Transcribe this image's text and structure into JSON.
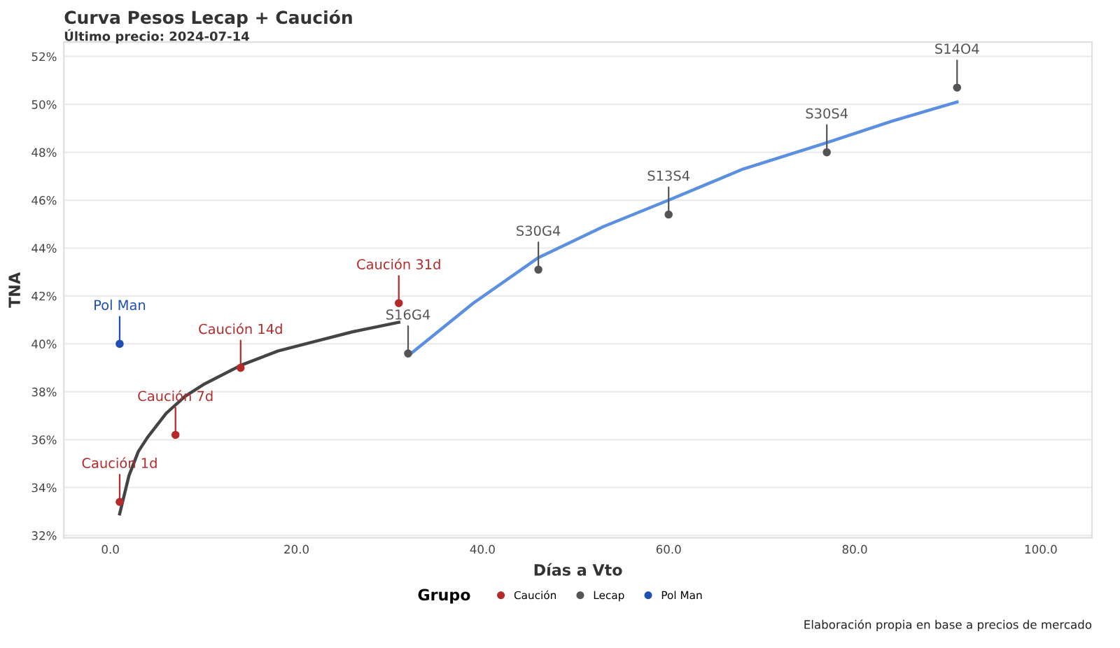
{
  "chart_data": {
    "type": "scatter",
    "title": "Curva Pesos Lecap + Caución",
    "subtitle": "Último precio: 2024-07-14",
    "xlabel": "Días a Vto",
    "ylabel": "TNA",
    "legend_title": "Grupo",
    "series": [
      {
        "name": "Caución",
        "color": "#b52a2a",
        "x": [
          1,
          7,
          14,
          31
        ],
        "values": [
          33.4,
          36.2,
          39.0,
          41.7
        ]
      },
      {
        "name": "Lecap",
        "color": "#555555",
        "x": [
          32,
          46,
          60,
          77,
          91
        ],
        "values": [
          39.6,
          43.1,
          45.4,
          48.0,
          50.7
        ]
      },
      {
        "name": "Pol Man",
        "color": "#1f4fb4",
        "x": [
          1
        ],
        "values": [
          40.0
        ]
      },
      {
        "type": "line",
        "marker": "none",
        "color": "#444444",
        "x": [
          1,
          2,
          3,
          4,
          6,
          8,
          10,
          14,
          18,
          22,
          26,
          31
        ],
        "values": [
          32.9,
          34.5,
          35.5,
          36.1,
          37.1,
          37.8,
          38.3,
          39.1,
          39.7,
          40.1,
          40.5,
          40.9
        ]
      },
      {
        "type": "line",
        "marker": "none",
        "color": "#5b8fe0",
        "x": [
          32,
          39,
          46,
          53,
          60,
          68,
          77,
          84,
          91
        ],
        "values": [
          39.5,
          41.7,
          43.6,
          44.9,
          46.0,
          47.3,
          48.4,
          49.3,
          50.1
        ]
      }
    ],
    "xlim": [
      -5,
      105.5
    ],
    "ylim": [
      31.9,
      52.6
    ],
    "xticks": [
      {
        "value": 0,
        "label": "0.0"
      },
      {
        "value": 20,
        "label": "20.0"
      },
      {
        "value": 40,
        "label": "40.0"
      },
      {
        "value": 60,
        "label": "60.0"
      },
      {
        "value": 80,
        "label": "80.0"
      },
      {
        "value": 100,
        "label": "100.0"
      }
    ],
    "yticks": [
      {
        "value": 32,
        "label": "32%"
      },
      {
        "value": 34,
        "label": "34%"
      },
      {
        "value": 36,
        "label": "36%"
      },
      {
        "value": 38,
        "label": "38%"
      },
      {
        "value": 40,
        "label": "40%"
      },
      {
        "value": 42,
        "label": "42%"
      },
      {
        "value": 44,
        "label": "44%"
      },
      {
        "value": 46,
        "label": "46%"
      },
      {
        "value": 48,
        "label": "48%"
      },
      {
        "value": 50,
        "label": "50%"
      },
      {
        "value": 52,
        "label": "52%"
      }
    ],
    "grid": "y",
    "legend": "bottom",
    "marker": "circle",
    "annotations": [
      {
        "text": "Caución 1d",
        "x": 1,
        "y": 33.4
      },
      {
        "text": "Caución 7d",
        "x": 7,
        "y": 36.2
      },
      {
        "text": "Caución 14d",
        "x": 14,
        "y": 39.0
      },
      {
        "text": "Caución 31d",
        "x": 31,
        "y": 41.7
      },
      {
        "text": "S16G4",
        "x": 32,
        "y": 39.6
      },
      {
        "text": "S30G4",
        "x": 46,
        "y": 43.1
      },
      {
        "text": "S13S4",
        "x": 60,
        "y": 45.4
      },
      {
        "text": "S30S4",
        "x": 77,
        "y": 48.0
      },
      {
        "text": "S14O4",
        "x": 91,
        "y": 50.7
      },
      {
        "text": "Pol Man",
        "x": 1,
        "y": 40.0
      },
      "Elaboración propia en base a precios de mercado"
    ]
  }
}
